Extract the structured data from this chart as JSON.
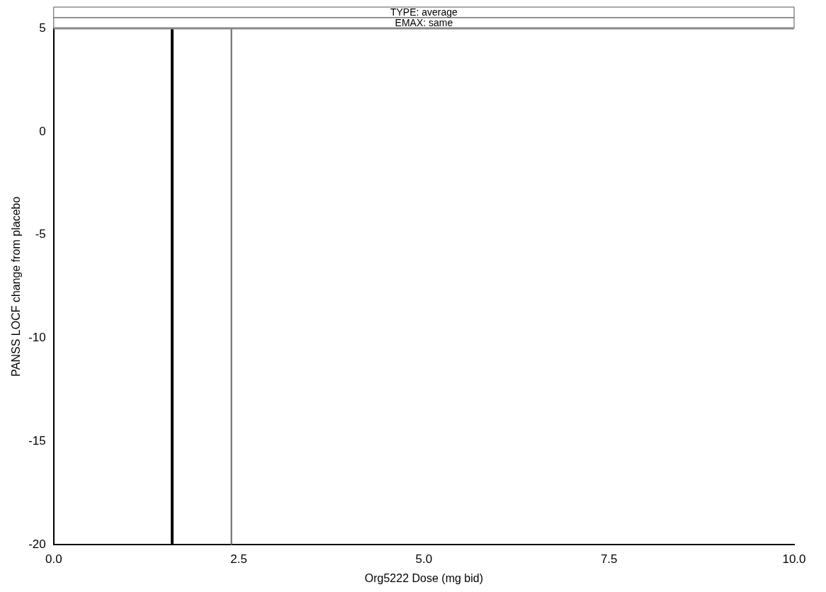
{
  "chart_data": {
    "type": "line",
    "title": "TYPE: average",
    "subtitle": "EMAX: same",
    "xlabel": "Org5222 Dose (mg bid)",
    "ylabel": "PANSS LOCF change from placebo",
    "xlim": [
      0,
      10
    ],
    "xticks": [
      {
        "value": 0,
        "label": "0.0"
      },
      {
        "value": 2.5,
        "label": "2.5"
      },
      {
        "value": 5,
        "label": "5.0"
      },
      {
        "value": 7.5,
        "label": "7.5"
      },
      {
        "value": 10,
        "label": "10.0"
      }
    ],
    "ylim": [
      -20,
      5
    ],
    "yticks": [
      -20,
      -15,
      -10,
      -5,
      0,
      5
    ],
    "grid": false,
    "legend": false,
    "ref_lines": [
      {
        "axis": "x",
        "value": 1.6,
        "color": "#000000"
      },
      {
        "axis": "x",
        "value": 2.4,
        "color": "#666666"
      }
    ]
  }
}
